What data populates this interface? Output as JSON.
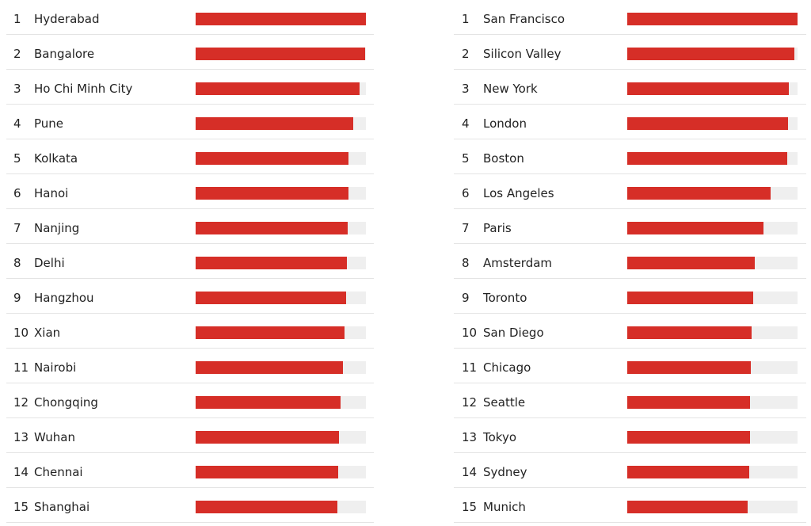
{
  "chart_data": [
    {
      "type": "bar",
      "ranks": [
        1,
        2,
        3,
        4,
        5,
        6,
        7,
        8,
        9,
        10,
        11,
        12,
        13,
        14,
        15
      ],
      "categories": [
        "Hyderabad",
        "Bangalore",
        "Ho Chi Minh City",
        "Pune",
        "Kolkata",
        "Hanoi",
        "Nanjing",
        "Delhi",
        "Hangzhou",
        "Xian",
        "Nairobi",
        "Chongqing",
        "Wuhan",
        "Chennai",
        "Shanghai"
      ],
      "values": [
        100,
        99.5,
        96.3,
        92.6,
        89.8,
        89.8,
        89.3,
        88.8,
        88.4,
        87.4,
        86.5,
        85.1,
        84.2,
        83.7,
        83.3
      ],
      "xlim": [
        0,
        100
      ],
      "color": "#d62e27"
    },
    {
      "type": "bar",
      "ranks": [
        1,
        2,
        3,
        4,
        5,
        6,
        7,
        8,
        9,
        10,
        11,
        12,
        13,
        14,
        15
      ],
      "categories": [
        "San Francisco",
        "Silicon Valley",
        "New York",
        "London",
        "Boston",
        "Los Angeles",
        "Paris",
        "Amsterdam",
        "Toronto",
        "San Diego",
        "Chicago",
        "Seattle",
        "Tokyo",
        "Sydney",
        "Munich"
      ],
      "values": [
        100,
        98.1,
        94.9,
        94.4,
        94.0,
        84.2,
        80.0,
        74.9,
        74.0,
        73.0,
        72.6,
        72.1,
        72.1,
        71.6,
        70.7
      ],
      "xlim": [
        0,
        100
      ],
      "color": "#d62e27"
    }
  ]
}
